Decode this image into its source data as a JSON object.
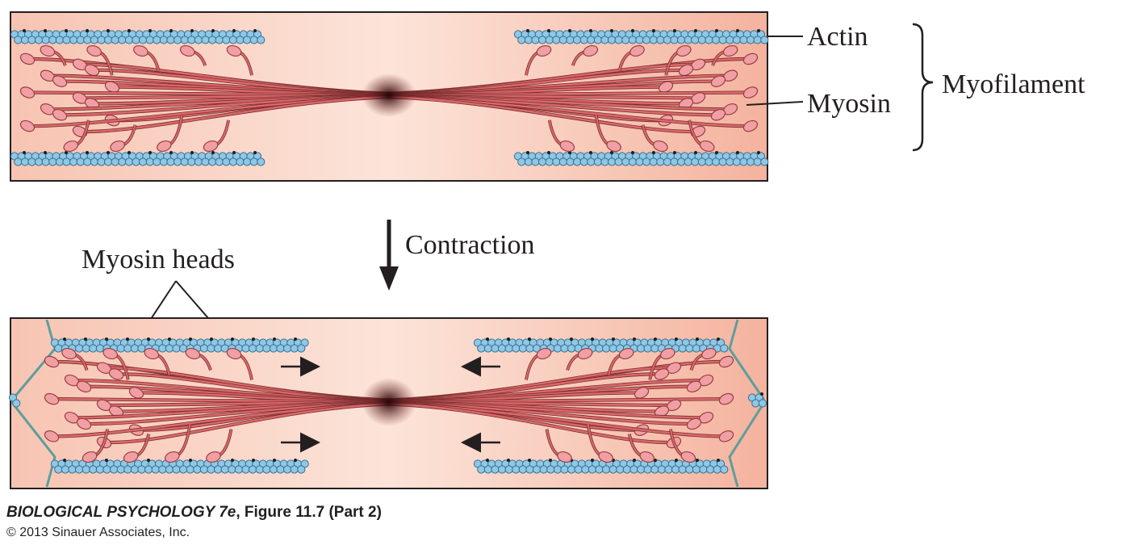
{
  "labels": {
    "actin": "Actin",
    "myosin": "Myosin",
    "myofilament": "Myofilament",
    "contraction": "Contraction",
    "myosin_heads": "Myosin heads"
  },
  "caption": {
    "book_title": "BIOLOGICAL PSYCHOLOGY 7e",
    "figure": ", Figure 11.7 (Part 2)",
    "copyright": "© 2013 Sinauer Associates, Inc."
  },
  "colors": {
    "sarcomere_fill": "#f7c9b8",
    "sarcomere_fill_center": "#fbe0d4",
    "myosin": "#d9686a",
    "myosin_head": "#f0a0a4",
    "myosin_center": "#3a0d0f",
    "actin_bead": "#8ec8e6",
    "actin_outline": "#3b6f8e",
    "z_line": "#5d9e9c",
    "arrow": "#231f20"
  },
  "icons": {
    "contraction_arrow": "arrow-down-icon",
    "sliding_arrows": "arrow-icon"
  }
}
